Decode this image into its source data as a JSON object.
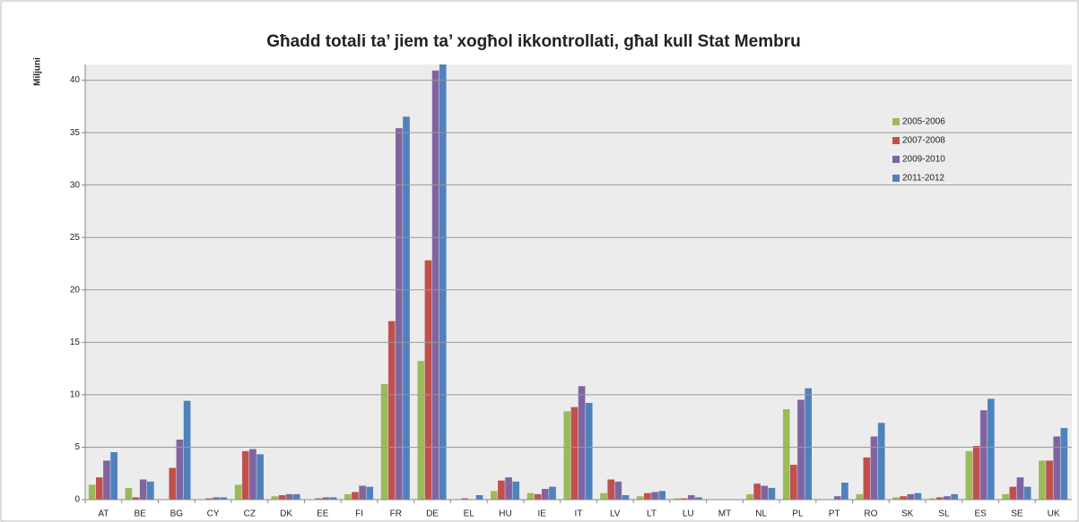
{
  "chart_data": {
    "type": "bar",
    "title": "Għadd totali ta’ jiem ta’ xogħol ikkontrollati, għal kull Stat Membru",
    "y_label": "Miljuni",
    "categories": [
      "AT",
      "BE",
      "BG",
      "CY",
      "CZ",
      "DK",
      "EE",
      "FI",
      "FR",
      "DE",
      "EL",
      "HU",
      "IE",
      "IT",
      "LV",
      "LT",
      "LU",
      "MT",
      "NL",
      "PL",
      "PT",
      "RO",
      "SK",
      "SL",
      "ES",
      "SE",
      "UK"
    ],
    "series": [
      {
        "name": "2005-2006",
        "color": "#9bbb59",
        "values": [
          1.4,
          1.1,
          0,
          0,
          1.4,
          0.3,
          0,
          0.5,
          11.0,
          13.2,
          0,
          0.8,
          0.6,
          8.4,
          0.6,
          0.3,
          0.1,
          0,
          0.5,
          8.6,
          0,
          0.5,
          0.2,
          0.1,
          4.6,
          0.5,
          3.7
        ]
      },
      {
        "name": "2007-2008",
        "color": "#c0504d",
        "values": [
          2.1,
          0.2,
          3.0,
          0.1,
          4.6,
          0.4,
          0.1,
          0.7,
          17.0,
          22.8,
          0.1,
          1.8,
          0.5,
          8.8,
          1.9,
          0.6,
          0.1,
          0,
          1.5,
          3.3,
          0,
          4.0,
          0.3,
          0.2,
          5.1,
          1.2,
          3.7
        ]
      },
      {
        "name": "2009-2010",
        "color": "#8064a2",
        "values": [
          3.7,
          1.9,
          5.7,
          0.2,
          4.8,
          0.5,
          0.2,
          1.3,
          35.4,
          40.9,
          0,
          2.1,
          1.0,
          10.8,
          1.7,
          0.7,
          0.4,
          0,
          1.3,
          9.5,
          0.3,
          6.0,
          0.5,
          0.3,
          8.5,
          2.1,
          6.0
        ]
      },
      {
        "name": "2011-2012",
        "color": "#4f81bd",
        "values": [
          4.5,
          1.7,
          9.4,
          0.2,
          4.3,
          0.5,
          0.2,
          1.2,
          36.5,
          42.0,
          0.4,
          1.7,
          1.2,
          9.2,
          0.4,
          0.8,
          0.2,
          0,
          1.1,
          10.6,
          1.6,
          7.3,
          0.6,
          0.5,
          9.6,
          1.2,
          6.8
        ]
      }
    ],
    "ylim": [
      0,
      41.5
    ],
    "yticks": [
      0,
      5,
      10,
      15,
      20,
      25,
      30,
      35,
      40
    ],
    "grid": true,
    "legend": "upper right"
  }
}
